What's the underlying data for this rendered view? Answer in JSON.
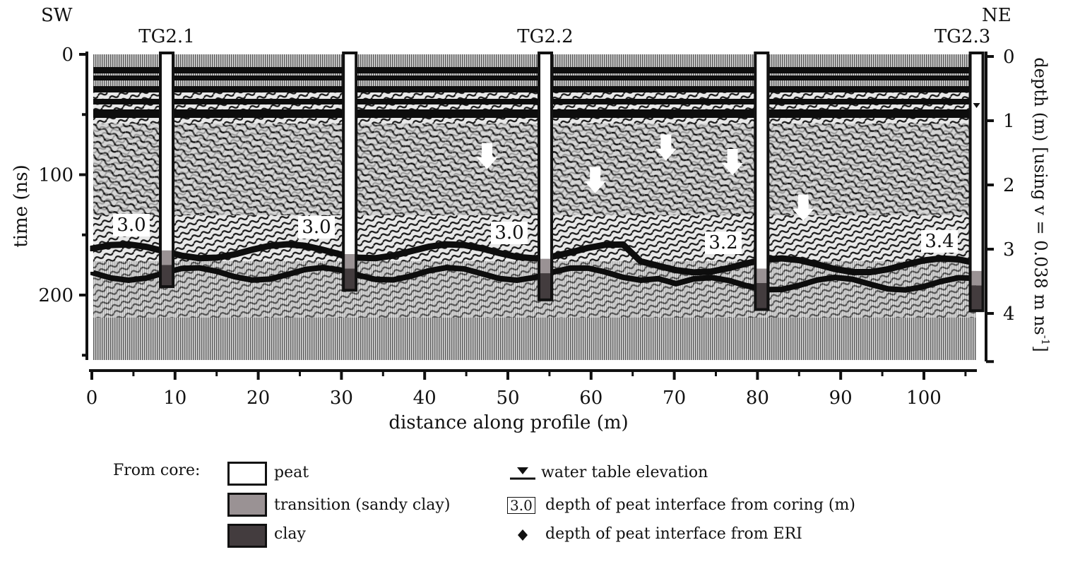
{
  "orientation": {
    "left": "SW",
    "right": "NE"
  },
  "cores": [
    {
      "label": "TG2.1",
      "x_m": 9,
      "peat_depth_label": "3.0"
    },
    {
      "label": "",
      "x_m": 31,
      "peat_depth_label": "3.0"
    },
    {
      "label": "TG2.2",
      "x_m": 54.5,
      "peat_depth_label": "3.0"
    },
    {
      "label": "",
      "x_m": 80.5,
      "peat_depth_label": "3.2"
    },
    {
      "label": "TG2.3",
      "x_m": 106.5,
      "peat_depth_label": "3.4"
    }
  ],
  "axes": {
    "x": {
      "label": "distance along profile (m)",
      "range": [
        0,
        107
      ],
      "ticks": [
        "0",
        "10",
        "20",
        "30",
        "40",
        "50",
        "60",
        "70",
        "80",
        "90",
        "100"
      ]
    },
    "y_left": {
      "label": "time (ns)",
      "range": [
        0,
        255
      ],
      "ticks": [
        "0",
        "100",
        "200"
      ]
    },
    "y_right": {
      "label": "depth (m) [using v = 0.038 m ns",
      "label_superscript": "-1",
      "label_suffix": "]",
      "ticks": [
        "0",
        "1",
        "2",
        "3",
        "4"
      ]
    }
  },
  "arrows_approx": [
    {
      "x_m": 47.5,
      "time_ns": 95
    },
    {
      "x_m": 60.5,
      "time_ns": 115
    },
    {
      "x_m": 69,
      "time_ns": 88
    },
    {
      "x_m": 77,
      "time_ns": 100
    },
    {
      "x_m": 85.5,
      "time_ns": 138
    }
  ],
  "legend": {
    "from_core_label": "From core:",
    "peat": "peat",
    "transition": "transition (sandy clay)",
    "clay": "clay",
    "water_table": "water table elevation",
    "coring_box": "3.0",
    "coring": "depth of peat interface from coring (m)",
    "eri": "depth of peat interface from ERI",
    "colors": {
      "peat": "#ffffff",
      "transition": "#9a9294",
      "clay": "#433c3e"
    }
  }
}
